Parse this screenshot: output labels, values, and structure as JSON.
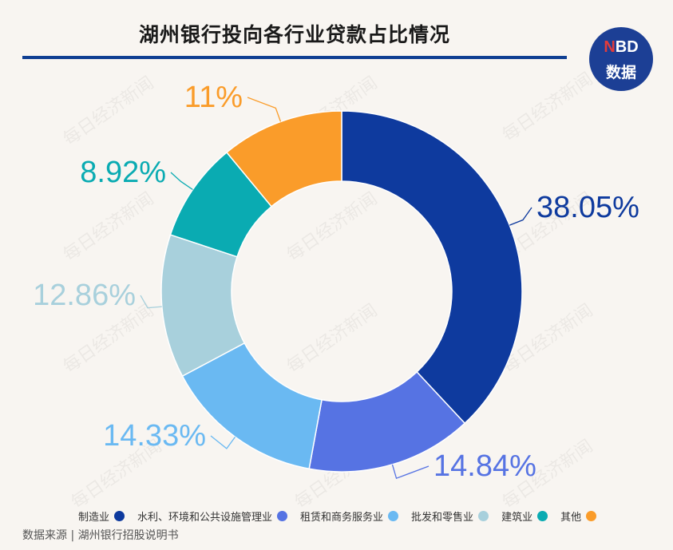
{
  "title": "湖州银行投向各行业贷款占比情况",
  "logo": {
    "line1_n": "N",
    "line1_rest": "BD",
    "line2": "数据"
  },
  "watermark": "每日经济新闻",
  "source": "数据来源 | 湖州银行招股说明书",
  "chart_data": {
    "type": "pie",
    "donut": true,
    "title": "湖州银行投向各行业贷款占比情况",
    "categories": [
      "制造业",
      "水利、环境和公共设施管理业",
      "租赁和商务服务业",
      "批发和零售业",
      "建筑业",
      "其他"
    ],
    "values": [
      38.05,
      14.84,
      14.33,
      12.86,
      8.92,
      11
    ],
    "labels": [
      "38.05%",
      "14.84%",
      "14.33%",
      "12.86%",
      "8.92%",
      "11%"
    ],
    "colors": [
      "#0e3a9e",
      "#5673e3",
      "#6ab9f2",
      "#a8d0dc",
      "#0aabb2",
      "#fa9c2a"
    ],
    "legend_position": "bottom"
  }
}
